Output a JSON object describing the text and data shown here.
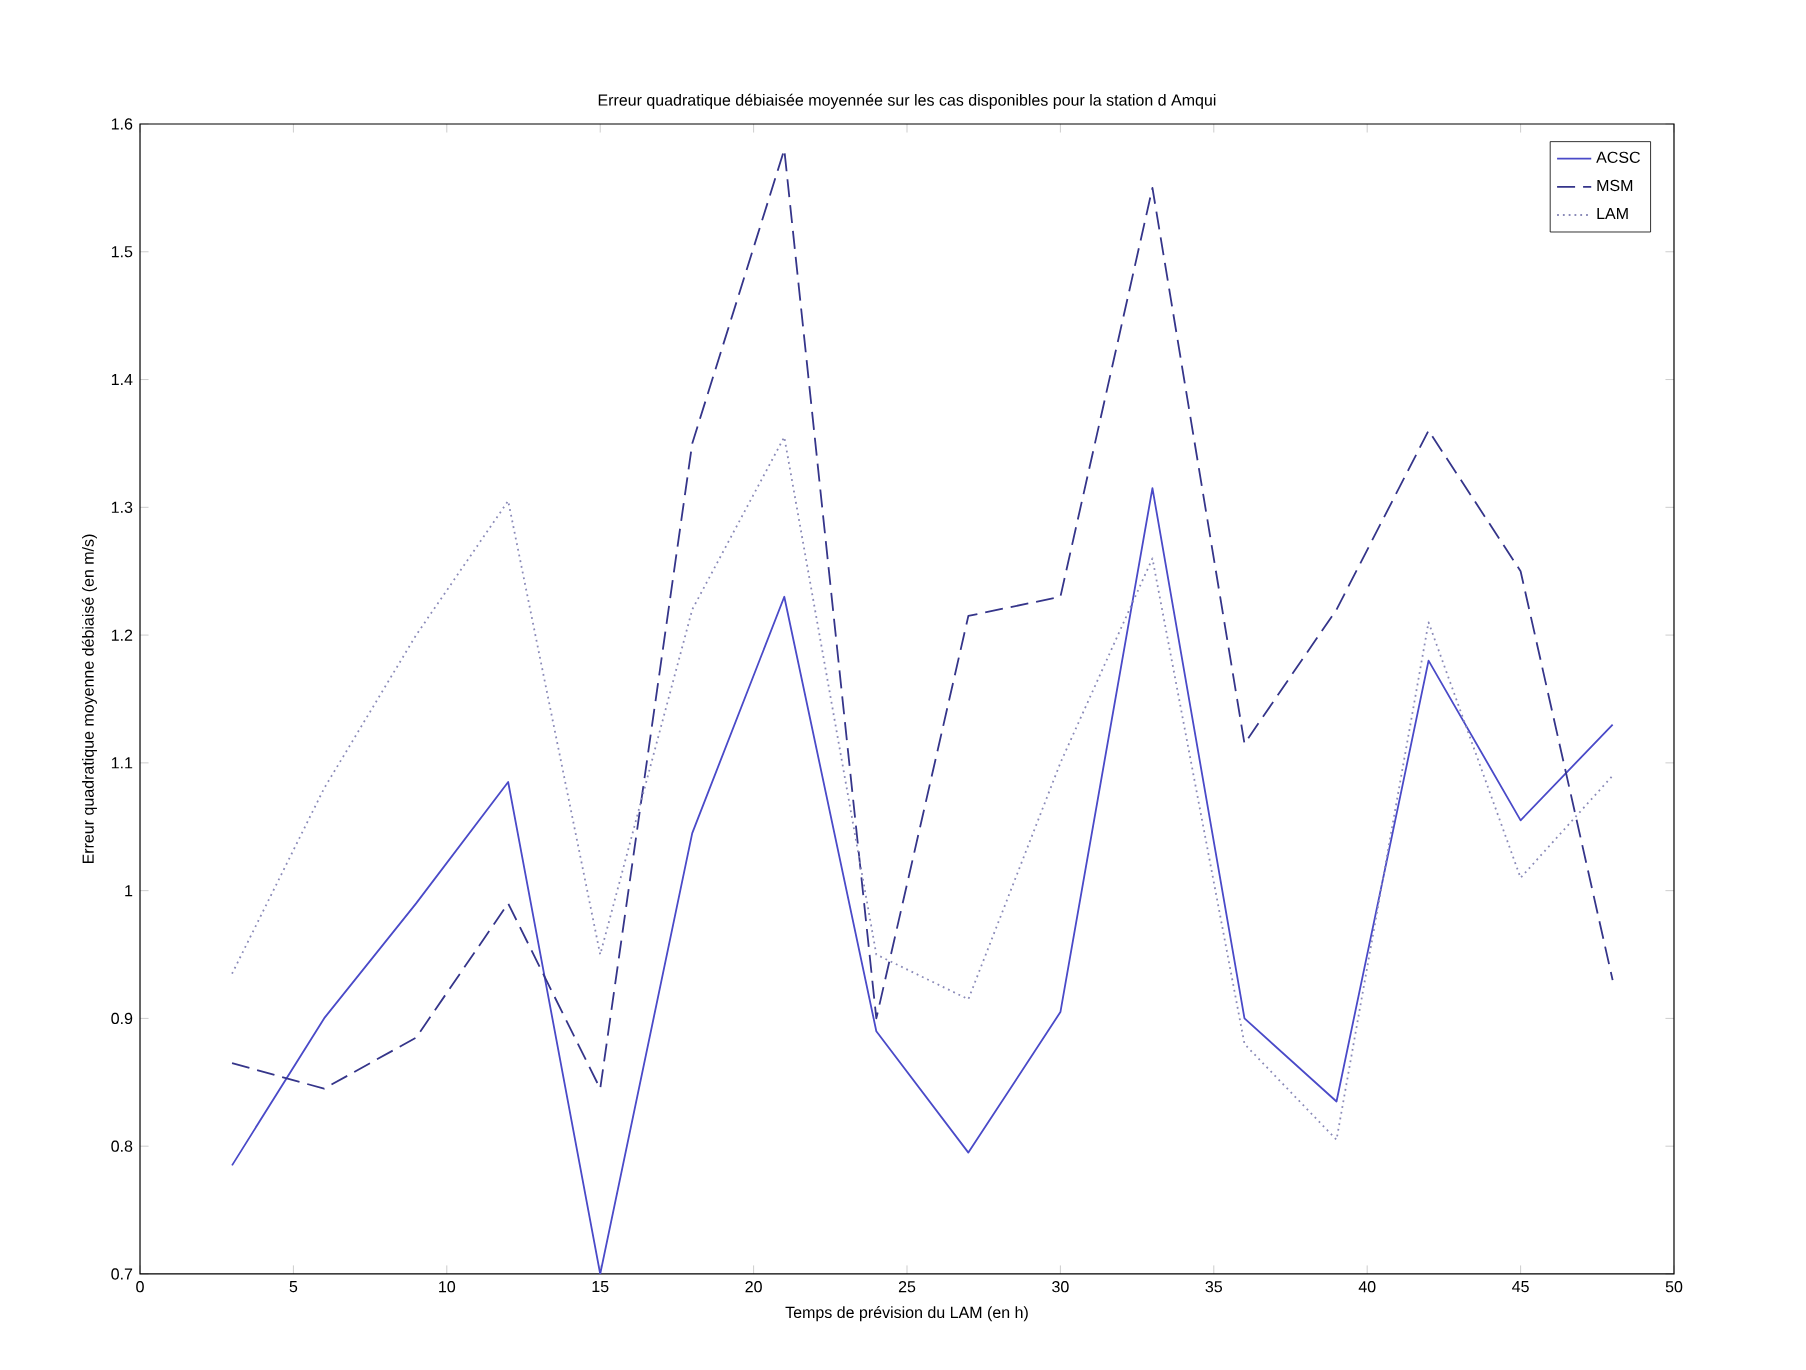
{
  "chart_data": {
    "type": "line",
    "title": "Erreur quadratique débiaisée moyennée sur les cas disponibles pour la station d Amqui",
    "xlabel": "Temps de prévision du LAM (en h)",
    "ylabel": "Erreur quadratique moyenne débiaisé (en m/s)",
    "x": [
      3,
      6,
      9,
      12,
      15,
      18,
      21,
      24,
      27,
      30,
      33,
      36,
      39,
      42,
      45,
      48
    ],
    "series": [
      {
        "name": "ACSC",
        "color": "#4a4ac8",
        "line_style": "solid",
        "values": [
          0.785,
          0.9,
          0.99,
          1.085,
          0.7,
          1.045,
          1.23,
          0.89,
          0.795,
          0.905,
          1.315,
          0.9,
          0.835,
          1.18,
          1.055,
          1.13
        ]
      },
      {
        "name": "MSM",
        "color": "#35358a",
        "line_style": "dashed",
        "values": [
          0.865,
          0.845,
          0.885,
          0.99,
          0.845,
          1.35,
          1.58,
          0.9,
          1.215,
          1.23,
          1.55,
          1.115,
          1.22,
          1.36,
          1.25,
          0.93
        ]
      },
      {
        "name": "LAM",
        "color": "#8a8ab8",
        "line_style": "dotted",
        "values": [
          0.935,
          1.08,
          1.2,
          1.305,
          0.95,
          1.22,
          1.355,
          0.95,
          0.915,
          1.1,
          1.26,
          0.88,
          0.805,
          1.21,
          1.01,
          1.09
        ]
      }
    ],
    "xlim": [
      0,
      50
    ],
    "ylim": [
      0.7,
      1.6
    ],
    "xticks": [
      0,
      5,
      10,
      15,
      20,
      25,
      30,
      35,
      40,
      45,
      50
    ],
    "yticks": [
      0.7,
      0.8,
      0.9,
      1,
      1.1,
      1.2,
      1.3,
      1.4,
      1.5,
      1.6
    ],
    "legend": "top right",
    "grid": false,
    "marker": "none"
  }
}
